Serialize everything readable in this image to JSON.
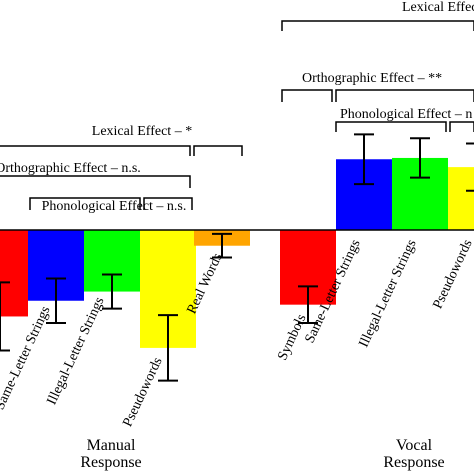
{
  "chart_data": {
    "type": "bar",
    "title": "",
    "xlabel": "",
    "ylabel": "",
    "groups": [
      {
        "label_line1": "Manual",
        "label_line2": "Response",
        "bars": [
          {
            "label": "",
            "value": -6.6,
            "error": 2.6,
            "color": "#ff0000"
          },
          {
            "label": "Same-Letter Strings",
            "value": -5.4,
            "error": 1.7,
            "color": "#0000ff"
          },
          {
            "label": "Illegal-Letter Strings",
            "value": -4.7,
            "error": 1.3,
            "color": "#00ff00"
          },
          {
            "label": "Pseudowords",
            "value": -9.0,
            "error": 2.5,
            "color": "#ffff00"
          },
          {
            "label": "Real Words",
            "value": -1.2,
            "error": 0.9,
            "color": "#ffa500"
          }
        ],
        "effects": [
          {
            "label": "Lexical Effect – *"
          },
          {
            "label": "Orthographic Effect – n.s."
          },
          {
            "label": "Phonological Effect – n.s."
          }
        ]
      },
      {
        "label_line1": "Vocal",
        "label_line2": "Response",
        "bars": [
          {
            "label": "Symbols",
            "value": -5.7,
            "error": 1.4,
            "color": "#ff0000"
          },
          {
            "label": "Same-Letter Strings",
            "value": 5.4,
            "error": 1.9,
            "color": "#0000ff"
          },
          {
            "label": "Illegal-Letter Strings",
            "value": 5.5,
            "error": 1.5,
            "color": "#00ff00"
          },
          {
            "label": "Pseudowords",
            "value": 4.8,
            "error": 1.8,
            "color": "#ffff00"
          }
        ],
        "effects": [
          {
            "label": "Lexical Effect –"
          },
          {
            "label": "Orthographic Effect – **"
          },
          {
            "label": "Phonological Effect – n"
          }
        ]
      }
    ],
    "ylim": [
      -12,
      10
    ],
    "grid": false,
    "legend": "none"
  }
}
